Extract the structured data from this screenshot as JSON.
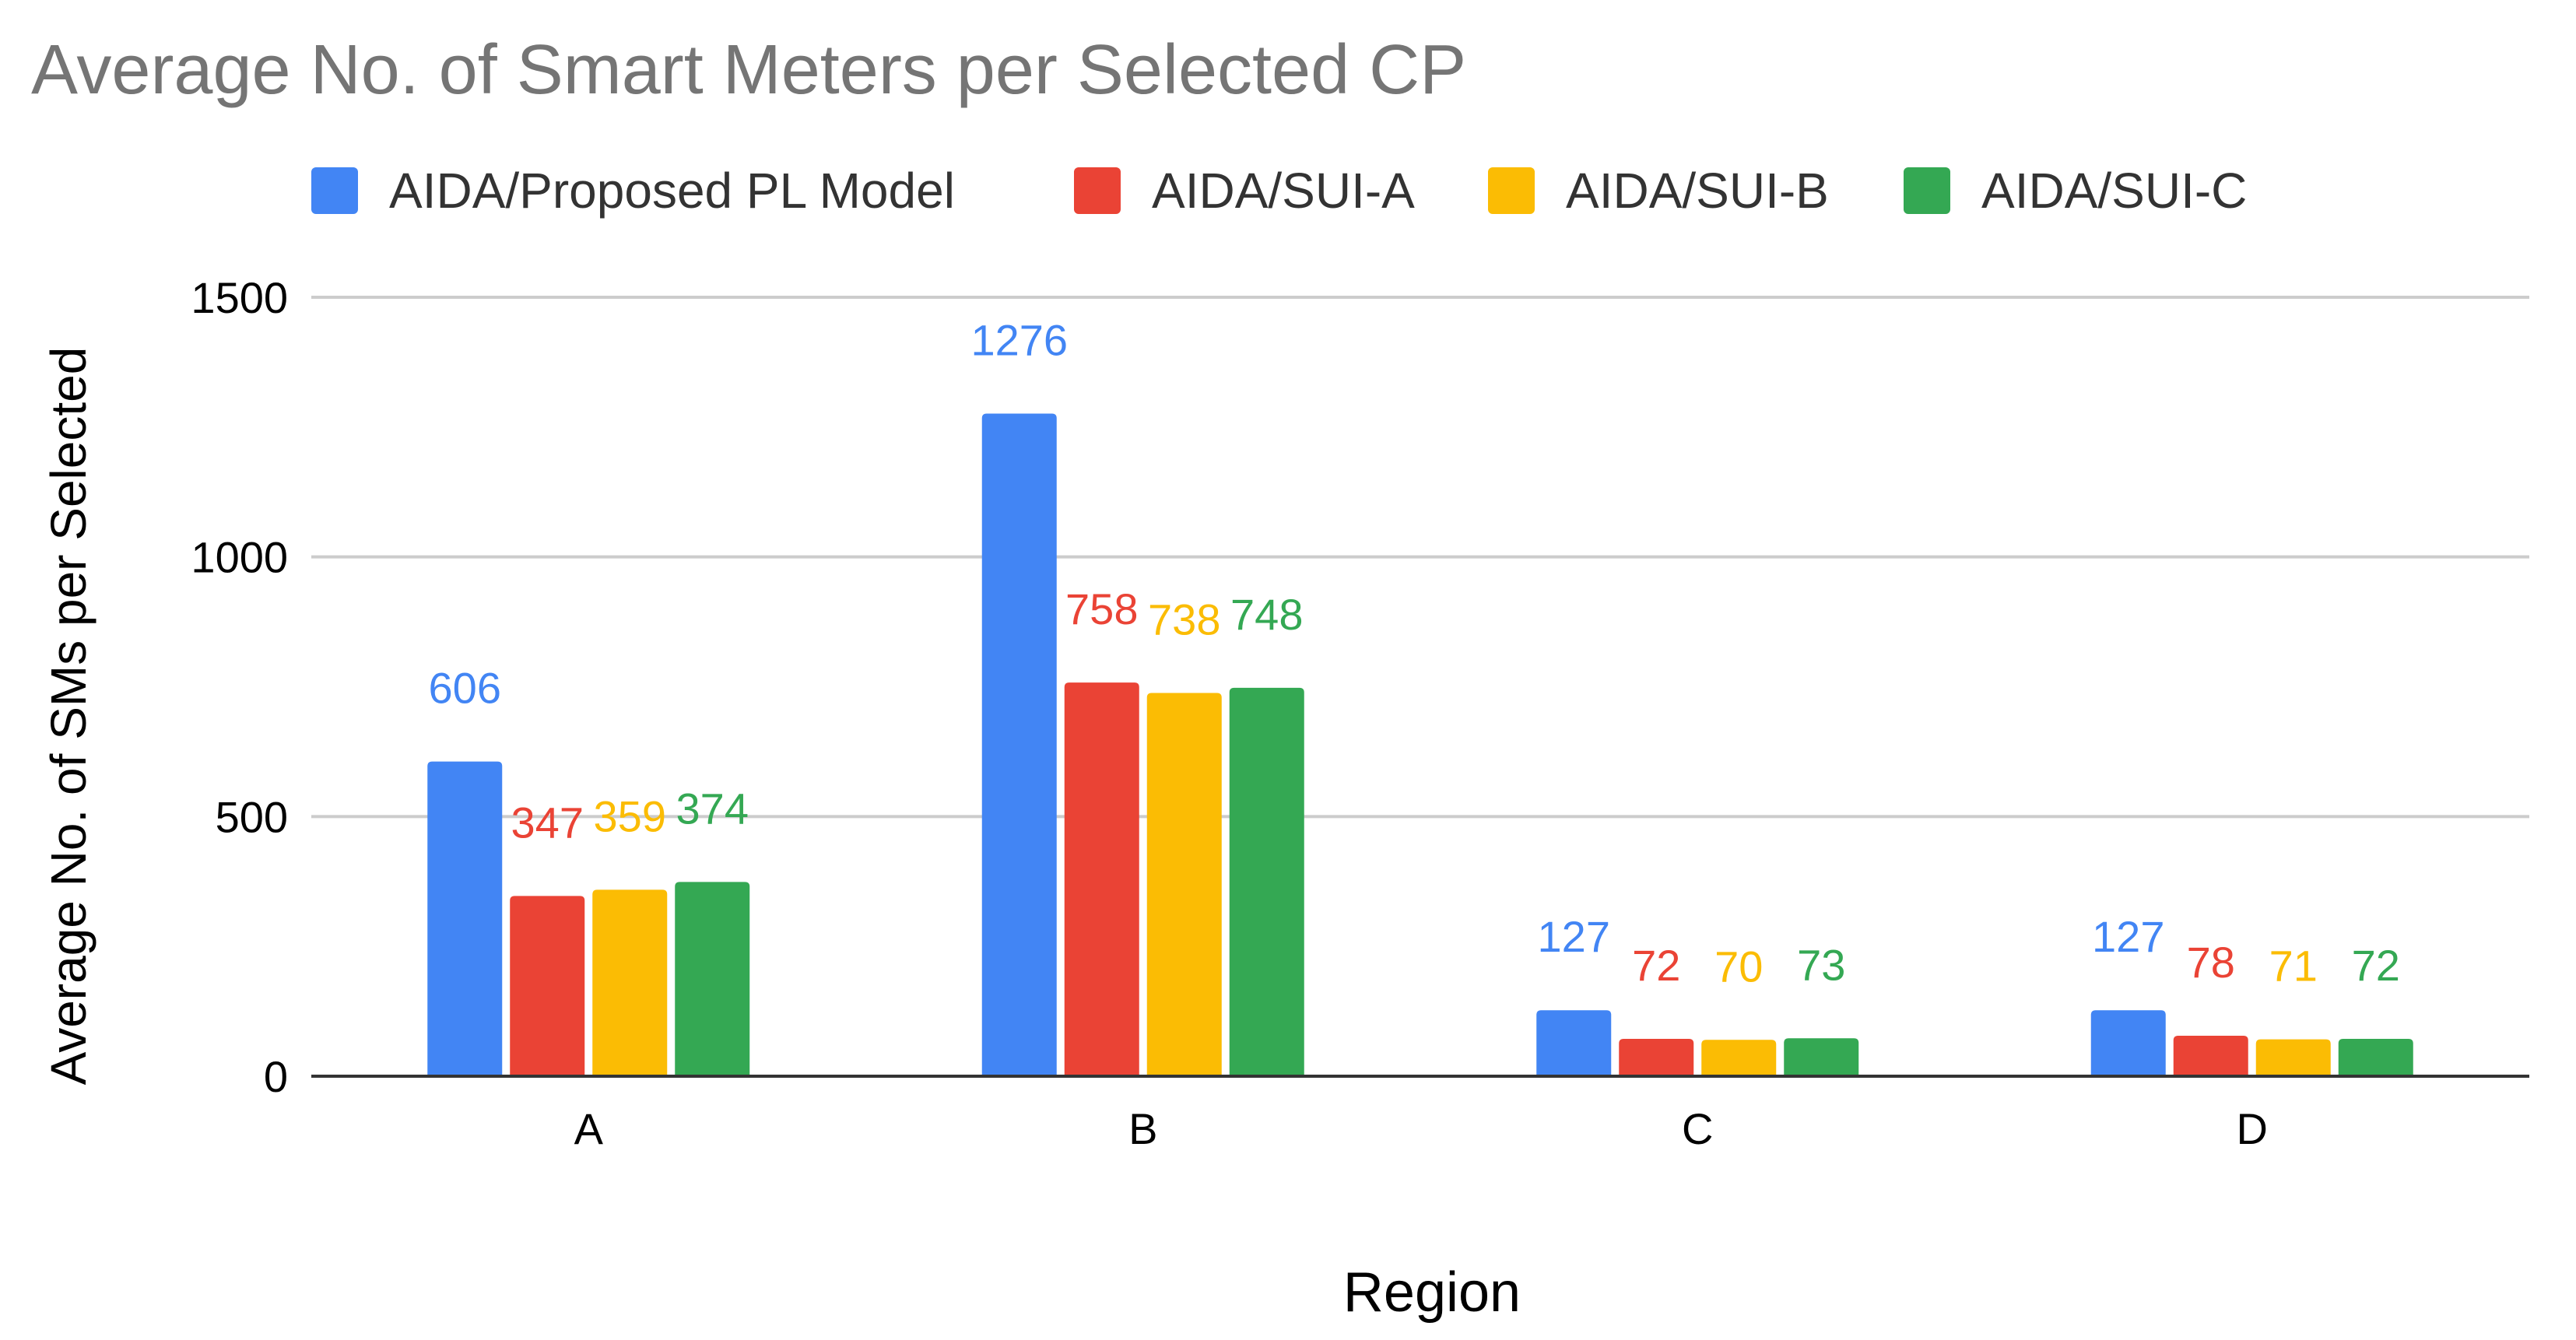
{
  "chart_data": {
    "type": "bar",
    "title": "Average No. of Smart Meters per Selected CP",
    "xlabel": "Region",
    "ylabel": "Average No. of SMs per Selected",
    "categories": [
      "A",
      "B",
      "C",
      "D"
    ],
    "ylim": [
      0,
      1500
    ],
    "yticks": [
      0,
      500,
      1000,
      1500
    ],
    "grid": true,
    "legend_position": "top",
    "series": [
      {
        "name": "AIDA/Proposed PL Model",
        "color": "#4285F4",
        "values": [
          606,
          1276,
          127,
          127
        ]
      },
      {
        "name": "AIDA/SUI-A",
        "color": "#EA4335",
        "values": [
          347,
          758,
          72,
          78
        ]
      },
      {
        "name": "AIDA/SUI-B",
        "color": "#FBBC04",
        "values": [
          359,
          738,
          70,
          71
        ]
      },
      {
        "name": "AIDA/SUI-C",
        "color": "#34A853",
        "values": [
          374,
          748,
          73,
          72
        ]
      }
    ]
  }
}
